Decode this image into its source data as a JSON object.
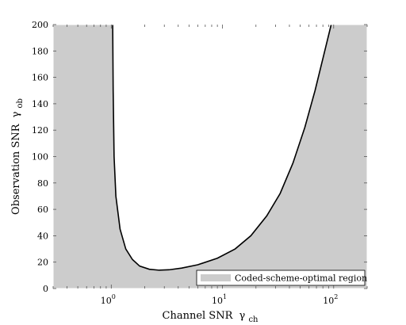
{
  "chart_data": {
    "type": "area",
    "title": "",
    "xlabel": "Channel SNR",
    "xlabel_symbol": "γ",
    "xlabel_sub": "ch",
    "ylabel": "Observation SNR",
    "ylabel_symbol": "γ",
    "ylabel_sub": "ob",
    "xscale": "log",
    "xlim": [
      0.3,
      200
    ],
    "ylim": [
      0,
      200
    ],
    "xticks": [
      {
        "value": 1,
        "label": "10",
        "exp": "0"
      },
      {
        "value": 10,
        "label": "10",
        "exp": "1"
      },
      {
        "value": 100,
        "label": "10",
        "exp": "2"
      }
    ],
    "yticks": [
      0,
      20,
      40,
      60,
      80,
      100,
      120,
      140,
      160,
      180,
      200
    ],
    "legend": {
      "position": "bottom-right",
      "entries": [
        "Coded-scheme-optimal region"
      ]
    },
    "region_color": "#cccccc",
    "boundary_color": "#000000",
    "boundary": {
      "x": [
        1.03,
        1.04,
        1.06,
        1.1,
        1.2,
        1.35,
        1.55,
        1.8,
        2.2,
        2.7,
        3.3,
        4.3,
        6,
        9,
        13,
        18,
        25,
        33,
        43,
        55,
        68,
        82,
        95
      ],
      "y": [
        200,
        150,
        100,
        70,
        45,
        30,
        22,
        17,
        14.6,
        13.9,
        14.2,
        15.5,
        18,
        23,
        30,
        40,
        55,
        72,
        95,
        122,
        150,
        178,
        200
      ]
    }
  }
}
